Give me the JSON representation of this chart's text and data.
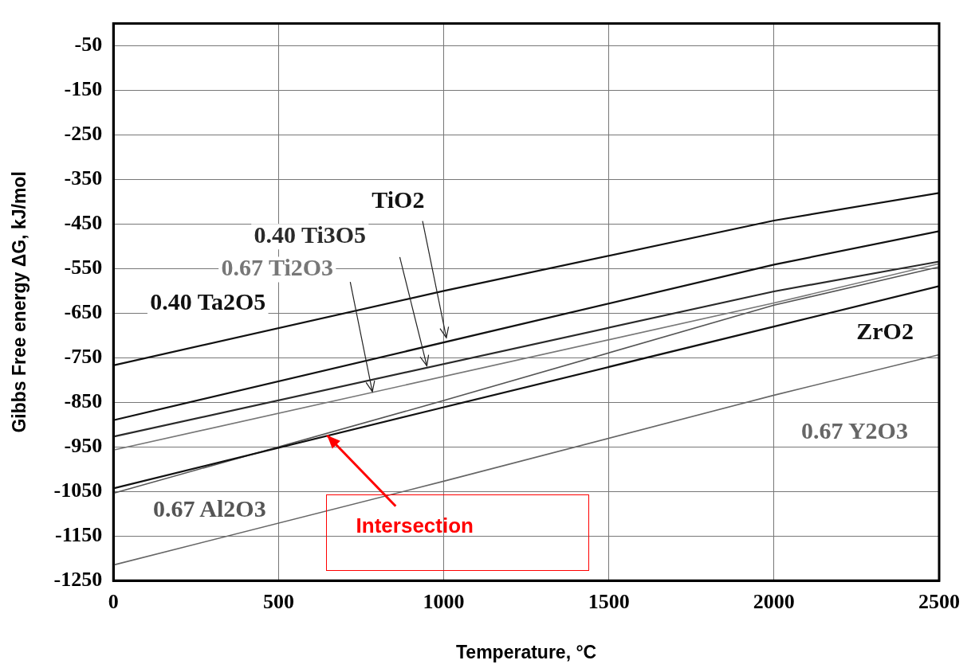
{
  "chart_data": {
    "type": "line",
    "xlabel": "Temperature, °C",
    "ylabel": "Gibbs Free energy ΔG, kJ/mol",
    "xlim": [
      0,
      2500
    ],
    "xticks": [
      0,
      500,
      1000,
      1500,
      2000,
      2500
    ],
    "ylim": [
      -1250,
      0
    ],
    "yticks": [
      -50,
      -150,
      -250,
      -350,
      -450,
      -550,
      -650,
      -750,
      -850,
      -950,
      -1050,
      -1150,
      -1250
    ],
    "grid": true,
    "legend": false,
    "marker": "none",
    "line_style": "solid",
    "series": [
      {
        "name": "0.40 Ta2O5",
        "color": "#111111",
        "x": [
          0,
          1000,
          2000,
          2500
        ],
        "values": [
          -767,
          -600,
          -442,
          -380
        ]
      },
      {
        "name": "TiO2",
        "color": "#111111",
        "x": [
          0,
          2000,
          2500
        ],
        "values": [
          -890,
          -541,
          -466
        ]
      },
      {
        "name": "0.40 Ti3O5",
        "color": "#2a2a2a",
        "x": [
          0,
          2000,
          2500
        ],
        "values": [
          -927,
          -601,
          -534
        ]
      },
      {
        "name": "0.67 Ti2O3",
        "color": "#777777",
        "x": [
          0,
          2000,
          2500
        ],
        "values": [
          -957,
          -627,
          -539
        ]
      },
      {
        "name": "ZrO2",
        "color": "#111111",
        "x": [
          0,
          1000,
          2000,
          2500
        ],
        "values": [
          -1043,
          -861,
          -680,
          -589
        ]
      },
      {
        "name": "0.67 Al2O3",
        "color": "#555555",
        "x": [
          0,
          1000,
          2000,
          2500
        ],
        "values": [
          -1054,
          -846,
          -632,
          -546
        ]
      },
      {
        "name": "0.67 Y2O3",
        "color": "#666666",
        "x": [
          0,
          1000,
          2000,
          2500
        ],
        "values": [
          -1215,
          -1027,
          -834,
          -743
        ]
      }
    ],
    "annotations": [
      {
        "text": "Intersection",
        "x": 647,
        "y": -924
      }
    ]
  }
}
